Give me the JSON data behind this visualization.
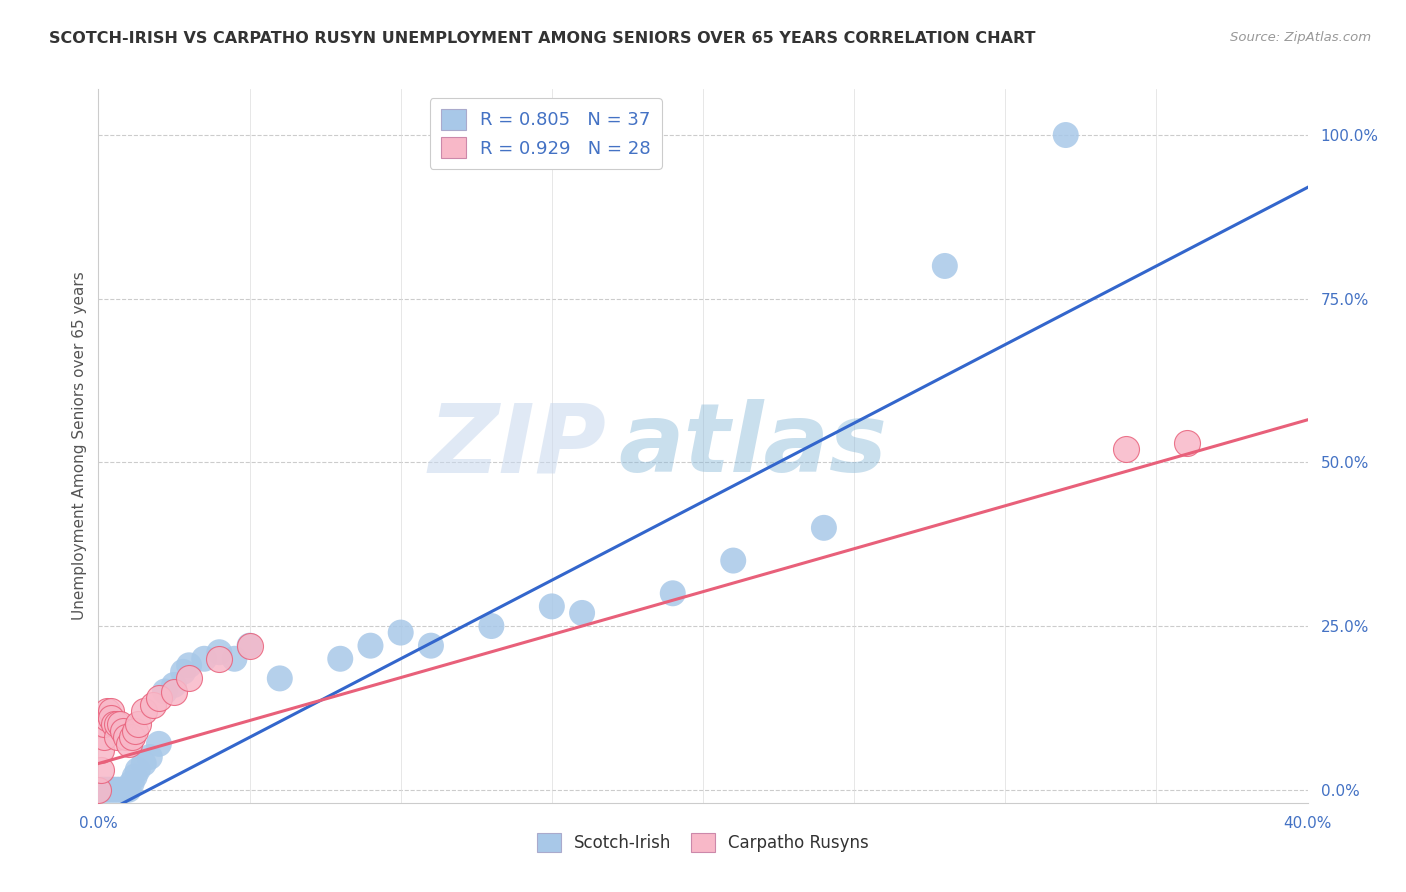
{
  "title": "SCOTCH-IRISH VS CARPATHO RUSYN UNEMPLOYMENT AMONG SENIORS OVER 65 YEARS CORRELATION CHART",
  "source": "Source: ZipAtlas.com",
  "ylabel": "Unemployment Among Seniors over 65 years",
  "ytick_labels": [
    "0.0%",
    "25.0%",
    "50.0%",
    "75.0%",
    "100.0%"
  ],
  "ytick_values": [
    0.0,
    0.25,
    0.5,
    0.75,
    1.0
  ],
  "xlim": [
    0.0,
    0.4
  ],
  "ylim": [
    -0.02,
    1.07
  ],
  "legend_r1": "R = 0.805",
  "legend_n1": "N = 37",
  "legend_r2": "R = 0.929",
  "legend_n2": "N = 28",
  "blue_color": "#a8c8e8",
  "blue_line_color": "#3366cc",
  "pink_color": "#f8b8c8",
  "pink_line_color": "#e8607a",
  "text_color": "#4472c4",
  "watermark_zip": "ZIP",
  "watermark_atlas": "atlas",
  "scotch_irish_x": [
    0.001,
    0.002,
    0.003,
    0.004,
    0.005,
    0.006,
    0.007,
    0.008,
    0.009,
    0.01,
    0.011,
    0.012,
    0.013,
    0.015,
    0.017,
    0.02,
    0.022,
    0.025,
    0.028,
    0.03,
    0.035,
    0.04,
    0.045,
    0.05,
    0.06,
    0.08,
    0.09,
    0.1,
    0.11,
    0.13,
    0.15,
    0.16,
    0.19,
    0.21,
    0.24,
    0.28,
    0.32
  ],
  "scotch_irish_y": [
    0.0,
    0.0,
    0.0,
    0.0,
    0.0,
    0.0,
    0.0,
    0.0,
    0.0,
    0.0,
    0.01,
    0.02,
    0.03,
    0.04,
    0.05,
    0.07,
    0.15,
    0.16,
    0.18,
    0.19,
    0.2,
    0.21,
    0.2,
    0.22,
    0.17,
    0.2,
    0.22,
    0.24,
    0.22,
    0.25,
    0.28,
    0.27,
    0.3,
    0.35,
    0.4,
    0.8,
    1.0
  ],
  "carpatho_rusyn_x": [
    0.0,
    0.001,
    0.001,
    0.002,
    0.002,
    0.003,
    0.003,
    0.004,
    0.004,
    0.005,
    0.006,
    0.006,
    0.007,
    0.008,
    0.009,
    0.01,
    0.011,
    0.012,
    0.013,
    0.015,
    0.018,
    0.02,
    0.025,
    0.03,
    0.04,
    0.05,
    0.34,
    0.36
  ],
  "carpatho_rusyn_y": [
    0.0,
    0.03,
    0.06,
    0.08,
    0.1,
    0.11,
    0.12,
    0.12,
    0.11,
    0.1,
    0.08,
    0.1,
    0.1,
    0.09,
    0.08,
    0.07,
    0.08,
    0.09,
    0.1,
    0.12,
    0.13,
    0.14,
    0.15,
    0.17,
    0.2,
    0.22,
    0.52,
    0.53
  ],
  "blue_trendline_x": [
    0.0,
    0.4
  ],
  "blue_trendline_y": [
    -0.04,
    0.92
  ],
  "pink_trendline_x": [
    0.0,
    0.4
  ],
  "pink_trendline_y": [
    0.04,
    0.565
  ]
}
